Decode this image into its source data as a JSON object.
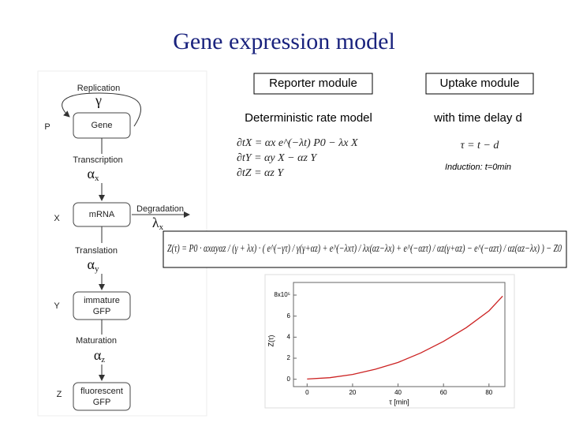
{
  "title": "Gene expression model",
  "diagram": {
    "replication": "Replication",
    "gamma": "γ",
    "p": "P",
    "gene": "Gene",
    "transcription": "Transcription",
    "alpha_x": {
      "symbol": "α",
      "sub": "x"
    },
    "x": "X",
    "mrna": "mRNA",
    "degradation": "Degradation",
    "lambda_x": {
      "symbol": "λ",
      "sub": "x"
    },
    "translation": "Translation",
    "alpha_y": {
      "symbol": "α",
      "sub": "y"
    },
    "y": "Y",
    "immature": [
      "immature",
      "GFP"
    ],
    "maturation": "Maturation",
    "alpha_z": {
      "symbol": "α",
      "sub": "z"
    },
    "z": "Z",
    "fluorescent": [
      "fluorescent",
      "GFP"
    ]
  },
  "modules": {
    "reporter": "Reporter module",
    "uptake": "Uptake module",
    "deterministic": "Deterministic rate model",
    "delay": "with time delay d"
  },
  "equations": [
    "∂tX = αx e^(−λt) P0 − λx X",
    "∂tY = αy X − αz Y",
    "∂tZ = αz Y"
  ],
  "delay_equation": "τ = t − d",
  "induction": "Induction: t=0min",
  "solution": "Z(τ) = P0 · αxαyαz / (γ + λx) · ( e^(−γτ) / γ(γ+αz) + e^(−λxτ) / λx(αz−λx) + e^(−αzτ) / αz(γ+αz) − e^(−αzτ) / αz(αz−λx) ) − Z0",
  "chart_data": {
    "type": "line",
    "xlabel": "τ [min]",
    "ylabel": "Z(τ)",
    "x": [
      0,
      10,
      20,
      30,
      40,
      50,
      60,
      70,
      80,
      86
    ],
    "series": [
      {
        "color": "#cc2222",
        "values": [
          0.02,
          0.15,
          0.45,
          0.95,
          1.6,
          2.5,
          3.6,
          4.9,
          6.5,
          7.9
        ]
      }
    ],
    "xlim": [
      -6,
      87
    ],
    "ylim": [
      -0.7,
      9.2
    ],
    "xticks": [
      0,
      20,
      40,
      60,
      80
    ],
    "yticks": [
      0,
      2,
      4,
      6,
      {
        "value": 8,
        "label": "8x10⁵"
      }
    ]
  }
}
